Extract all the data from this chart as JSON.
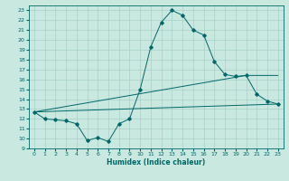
{
  "title": "",
  "xlabel": "Humidex (Indice chaleur)",
  "bg_color": "#c8e8e0",
  "grid_color": "#a8d0c8",
  "line_color": "#006868",
  "xlim": [
    -0.5,
    23.5
  ],
  "ylim": [
    9,
    23.5
  ],
  "yticks": [
    9,
    10,
    11,
    12,
    13,
    14,
    15,
    16,
    17,
    18,
    19,
    20,
    21,
    22,
    23
  ],
  "xticks": [
    0,
    1,
    2,
    3,
    4,
    5,
    6,
    7,
    8,
    9,
    10,
    11,
    12,
    13,
    14,
    15,
    16,
    17,
    18,
    19,
    20,
    21,
    22,
    23
  ],
  "line1_x": [
    0,
    1,
    2,
    3,
    4,
    5,
    6,
    7,
    8,
    9,
    10,
    11,
    12,
    13,
    14,
    15,
    16,
    17,
    18,
    19,
    20,
    21,
    22,
    23
  ],
  "line1_y": [
    12.7,
    12.0,
    11.9,
    11.8,
    11.5,
    9.8,
    10.1,
    9.7,
    11.5,
    12.0,
    15.0,
    19.3,
    21.8,
    23.0,
    22.5,
    21.0,
    20.5,
    17.8,
    16.5,
    16.3,
    16.4,
    14.5,
    13.8,
    13.5
  ],
  "line2_x": [
    0,
    23
  ],
  "line2_y": [
    12.7,
    13.5
  ],
  "line3_x": [
    0,
    20,
    23
  ],
  "line3_y": [
    12.7,
    16.4,
    16.4
  ],
  "tick_fontsize": 4.5,
  "xlabel_fontsize": 5.5,
  "marker_size": 1.8,
  "linewidth": 0.7
}
